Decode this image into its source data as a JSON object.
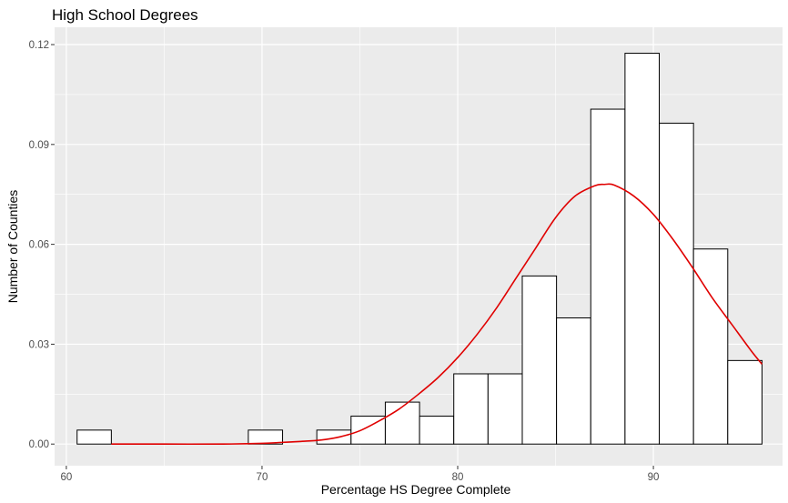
{
  "chart_data": {
    "type": "bar",
    "title": "High School Degrees",
    "xlabel": "Percentage HS Degree Complete",
    "ylabel": "Number of Counties",
    "xlim": [
      59.4,
      96.6
    ],
    "ylim": [
      -0.0065,
      0.1252
    ],
    "x_ticks": [
      {
        "value": 60,
        "label": "60"
      },
      {
        "value": 70,
        "label": "70"
      },
      {
        "value": 80,
        "label": "80"
      },
      {
        "value": 90,
        "label": "90"
      }
    ],
    "y_ticks": [
      {
        "value": 0.0,
        "label": "0.00"
      },
      {
        "value": 0.03,
        "label": "0.03"
      },
      {
        "value": 0.06,
        "label": "0.06"
      },
      {
        "value": 0.09,
        "label": "0.09"
      },
      {
        "value": 0.12,
        "label": "0.12"
      }
    ],
    "grid": true,
    "legend": "none",
    "bars": [
      {
        "x0": 60.55,
        "x1": 62.3,
        "value": 0.0042
      },
      {
        "x0": 69.3,
        "x1": 71.05,
        "value": 0.0042
      },
      {
        "x0": 72.8,
        "x1": 74.55,
        "value": 0.0042
      },
      {
        "x0": 74.55,
        "x1": 76.3,
        "value": 0.0084
      },
      {
        "x0": 76.3,
        "x1": 78.05,
        "value": 0.0126
      },
      {
        "x0": 78.05,
        "x1": 79.8,
        "value": 0.0084
      },
      {
        "x0": 79.8,
        "x1": 81.55,
        "value": 0.0211
      },
      {
        "x0": 81.55,
        "x1": 83.3,
        "value": 0.0211
      },
      {
        "x0": 83.3,
        "x1": 85.05,
        "value": 0.0505
      },
      {
        "x0": 85.05,
        "x1": 86.8,
        "value": 0.0379
      },
      {
        "x0": 86.8,
        "x1": 88.55,
        "value": 0.1006
      },
      {
        "x0": 88.55,
        "x1": 90.3,
        "value": 0.1174
      },
      {
        "x0": 90.3,
        "x1": 92.05,
        "value": 0.0964
      },
      {
        "x0": 92.05,
        "x1": 93.8,
        "value": 0.0586
      },
      {
        "x0": 93.8,
        "x1": 95.55,
        "value": 0.0251
      }
    ],
    "density_curve": {
      "color": "#e00000",
      "x": [
        62.3,
        65,
        68,
        70,
        71,
        72,
        73,
        74,
        75,
        76,
        77,
        78,
        79,
        80,
        81,
        82,
        83,
        84,
        85,
        86,
        87,
        87.5,
        88,
        89,
        90,
        91,
        92,
        93,
        94,
        95,
        95.55
      ],
      "y": [
        0.0,
        0.0,
        0.0,
        0.0002,
        0.0005,
        0.0008,
        0.0012,
        0.0022,
        0.004,
        0.007,
        0.0105,
        0.015,
        0.02,
        0.026,
        0.033,
        0.041,
        0.05,
        0.059,
        0.068,
        0.0745,
        0.0776,
        0.078,
        0.0778,
        0.0745,
        0.069,
        0.0615,
        0.053,
        0.044,
        0.036,
        0.028,
        0.024
      ]
    },
    "colors": {
      "panel": "#ebebeb",
      "grid_major": "#ffffff",
      "bar_fill": "#ffffff",
      "bar_stroke": "#000000"
    }
  }
}
